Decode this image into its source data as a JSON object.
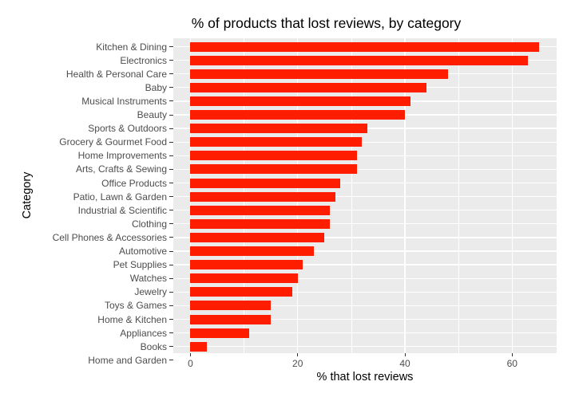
{
  "chart_data": {
    "type": "bar",
    "orientation": "horizontal",
    "title": "% of products that lost reviews, by category",
    "xlabel": "% that lost reviews",
    "ylabel": "Category",
    "categories": [
      "Kitchen & Dining",
      "Electronics",
      "Health & Personal Care",
      "Baby",
      "Musical Instruments",
      "Beauty",
      "Sports & Outdoors",
      "Grocery & Gourmet Food",
      "Home Improvements",
      "Arts, Crafts & Sewing",
      "Office Products",
      "Patio, Lawn & Garden",
      "Industrial & Scientific",
      "Clothing",
      "Cell Phones & Accessories",
      "Automotive",
      "Pet Supplies",
      "Watches",
      "Jewelry",
      "Toys & Games",
      "Home & Kitchen",
      "Appliances",
      "Books",
      "Home and Garden"
    ],
    "values": [
      65,
      63,
      48,
      44,
      41,
      40,
      33,
      32,
      31,
      31,
      28,
      27,
      26,
      26,
      25,
      23,
      21,
      20,
      19,
      15,
      15,
      11,
      3,
      2
    ],
    "xlim": [
      -3.2,
      68.3
    ],
    "xticks": [
      0,
      20,
      40,
      60
    ],
    "xtick_labels": [
      "0",
      "20",
      "40",
      "60"
    ],
    "grid": true,
    "legend": null,
    "bar_color": "#ff1d00",
    "panel_background": "#ebebeb"
  }
}
